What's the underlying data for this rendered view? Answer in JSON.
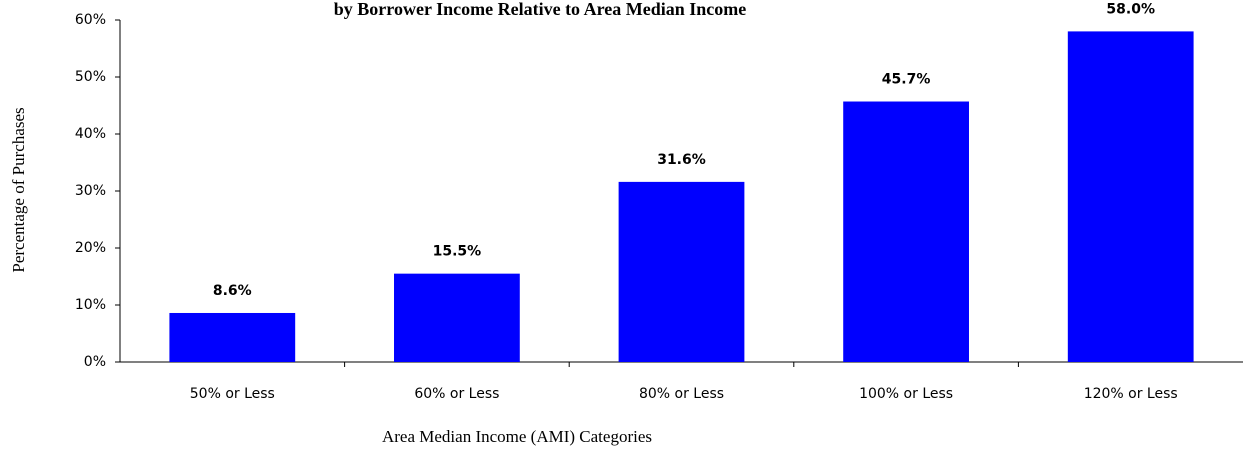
{
  "chart_data": {
    "type": "bar",
    "title": "by Borrower Income Relative to Area Median Income",
    "x_label": "Area Median Income (AMI) Categories",
    "y_label": "Percentage of Purchases",
    "categories": [
      "50% or Less",
      "60% or Less",
      "80% or Less",
      "100% or Less",
      "120% or Less"
    ],
    "values": [
      8.6,
      15.5,
      31.6,
      45.7,
      58.0
    ],
    "value_labels": [
      "8.6%",
      "15.5%",
      "31.6%",
      "45.7%",
      "58.0%"
    ],
    "color": "#0000ff",
    "ylim": [
      0,
      60
    ],
    "yticks": [
      {
        "value": 0,
        "label": "0%"
      },
      {
        "value": 10,
        "label": "10%"
      },
      {
        "value": 20,
        "label": "20%"
      },
      {
        "value": 30,
        "label": "30%"
      },
      {
        "value": 40,
        "label": "40%"
      },
      {
        "value": 50,
        "label": "50%"
      },
      {
        "value": 60,
        "label": "60%"
      }
    ],
    "grid": false
  }
}
